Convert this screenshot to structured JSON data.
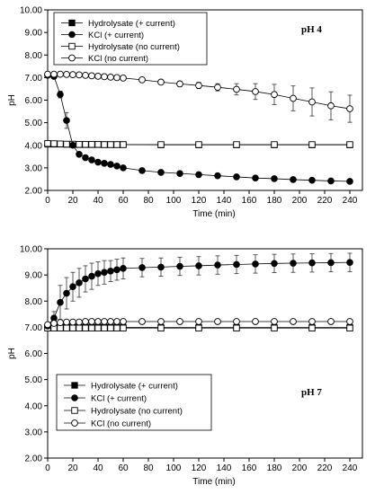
{
  "chart_data": [
    {
      "type": "scatter",
      "title": "pH 4",
      "xlabel": "Time (min)",
      "ylabel": "pH",
      "xlim": [
        0,
        250
      ],
      "ylim": [
        2.0,
        10.0
      ],
      "xticks": [
        0,
        20,
        40,
        60,
        80,
        100,
        120,
        140,
        160,
        180,
        200,
        220,
        240
      ],
      "yticks": [
        "2.00",
        "3.00",
        "4.00",
        "5.00",
        "6.00",
        "7.00",
        "8.00",
        "9.00",
        "10.00"
      ],
      "legend_position": "top-left",
      "series": [
        {
          "name": "Hydrolysate (+ current)",
          "marker": "square-filled",
          "x": [
            0,
            5,
            10,
            15,
            20,
            25,
            30,
            35,
            40,
            45,
            50,
            55,
            60,
            90,
            120,
            150,
            180,
            210,
            240
          ],
          "y": [
            4.05,
            4.05,
            4.05,
            4.04,
            4.04,
            4.03,
            4.03,
            4.03,
            4.03,
            4.03,
            4.03,
            4.03,
            4.03,
            4.02,
            4.02,
            4.02,
            4.02,
            4.02,
            4.02
          ]
        },
        {
          "name": "KCl (+ current)",
          "marker": "circle-filled",
          "x": [
            0,
            5,
            10,
            15,
            20,
            25,
            30,
            35,
            40,
            45,
            50,
            55,
            60,
            75,
            90,
            105,
            120,
            135,
            150,
            165,
            180,
            195,
            210,
            225,
            240
          ],
          "y": [
            7.1,
            7.05,
            6.25,
            5.1,
            4.0,
            3.6,
            3.45,
            3.35,
            3.25,
            3.2,
            3.15,
            3.08,
            3.0,
            2.88,
            2.8,
            2.75,
            2.7,
            2.65,
            2.6,
            2.55,
            2.52,
            2.48,
            2.45,
            2.42,
            2.4
          ],
          "err": [
            0,
            0,
            0.15,
            0.35,
            0.1,
            0.05,
            0.05,
            0.05,
            0.05,
            0.05,
            0.05,
            0.05,
            0.05,
            0.05,
            0.05,
            0.05,
            0.05,
            0.05,
            0.05,
            0.05,
            0.05,
            0.05,
            0.05,
            0.05,
            0.05
          ]
        },
        {
          "name": "Hydrolysate (no current)",
          "marker": "square-open",
          "x": [
            0,
            5,
            10,
            15,
            20,
            25,
            30,
            35,
            40,
            45,
            50,
            55,
            60,
            90,
            120,
            150,
            180,
            210,
            240
          ],
          "y": [
            4.08,
            4.07,
            4.06,
            4.05,
            4.05,
            4.04,
            4.04,
            4.04,
            4.04,
            4.03,
            4.03,
            4.03,
            4.03,
            4.03,
            4.03,
            4.03,
            4.03,
            4.03,
            4.03
          ]
        },
        {
          "name": "KCl (no current)",
          "marker": "circle-open",
          "x": [
            0,
            5,
            10,
            15,
            20,
            25,
            30,
            35,
            40,
            45,
            50,
            55,
            60,
            75,
            90,
            105,
            120,
            135,
            150,
            165,
            180,
            195,
            210,
            225,
            240
          ],
          "y": [
            7.15,
            7.15,
            7.15,
            7.14,
            7.13,
            7.12,
            7.1,
            7.08,
            7.06,
            7.04,
            7.02,
            7.0,
            6.98,
            6.9,
            6.8,
            6.72,
            6.65,
            6.57,
            6.48,
            6.38,
            6.25,
            6.08,
            5.92,
            5.75,
            5.62
          ],
          "err": [
            0.03,
            0.03,
            0.04,
            0.04,
            0.05,
            0.05,
            0.05,
            0.05,
            0.06,
            0.06,
            0.06,
            0.06,
            0.07,
            0.08,
            0.1,
            0.12,
            0.14,
            0.16,
            0.25,
            0.35,
            0.45,
            0.55,
            0.62,
            0.62,
            0.6
          ]
        }
      ]
    },
    {
      "type": "scatter",
      "title": "pH 7",
      "xlabel": "Time (min)",
      "ylabel": "pH",
      "xlim": [
        0,
        250
      ],
      "ylim": [
        2.0,
        10.0
      ],
      "xticks": [
        0,
        20,
        40,
        60,
        80,
        100,
        120,
        140,
        160,
        180,
        200,
        220,
        240
      ],
      "yticks": [
        "2.00",
        "3.00",
        "4.00",
        "5.00",
        "6.00",
        "7.00",
        "8.00",
        "9.00",
        "10.00"
      ],
      "legend_position": "bottom-left",
      "series": [
        {
          "name": "Hydrolysate (+ current)",
          "marker": "square-filled",
          "x": [
            0,
            5,
            10,
            15,
            20,
            25,
            30,
            35,
            40,
            45,
            50,
            55,
            60,
            90,
            120,
            150,
            180,
            210,
            240
          ],
          "y": [
            7.0,
            7.0,
            7.0,
            7.0,
            7.0,
            7.0,
            7.0,
            7.0,
            7.0,
            7.0,
            7.0,
            7.0,
            7.0,
            6.99,
            6.99,
            6.99,
            6.99,
            6.99,
            6.99
          ]
        },
        {
          "name": "KCl (+ current)",
          "marker": "circle-filled",
          "x": [
            0,
            5,
            10,
            15,
            20,
            25,
            30,
            35,
            40,
            45,
            50,
            55,
            60,
            75,
            90,
            105,
            120,
            135,
            150,
            165,
            180,
            195,
            210,
            225,
            240
          ],
          "y": [
            7.05,
            7.35,
            7.95,
            8.3,
            8.55,
            8.7,
            8.85,
            8.95,
            9.05,
            9.1,
            9.15,
            9.2,
            9.25,
            9.28,
            9.3,
            9.33,
            9.35,
            9.38,
            9.4,
            9.42,
            9.44,
            9.45,
            9.46,
            9.47,
            9.48
          ],
          "err": [
            0.05,
            0.25,
            0.65,
            0.6,
            0.55,
            0.55,
            0.5,
            0.5,
            0.45,
            0.45,
            0.4,
            0.4,
            0.4,
            0.35,
            0.35,
            0.35,
            0.35,
            0.35,
            0.35,
            0.35,
            0.35,
            0.35,
            0.35,
            0.35,
            0.35
          ]
        },
        {
          "name": "Hydrolysate (no current)",
          "marker": "square-open",
          "x": [
            0,
            5,
            10,
            15,
            20,
            25,
            30,
            35,
            40,
            45,
            50,
            55,
            60,
            90,
            120,
            150,
            180,
            210,
            240
          ],
          "y": [
            6.97,
            6.97,
            6.97,
            6.97,
            6.97,
            6.97,
            6.97,
            6.97,
            6.97,
            6.97,
            6.97,
            6.97,
            6.97,
            6.97,
            6.97,
            6.97,
            6.97,
            6.97,
            6.97
          ]
        },
        {
          "name": "KCl (no current)",
          "marker": "circle-open",
          "x": [
            0,
            5,
            10,
            15,
            20,
            25,
            30,
            35,
            40,
            45,
            50,
            55,
            60,
            75,
            90,
            105,
            120,
            135,
            150,
            165,
            180,
            195,
            210,
            225,
            240
          ],
          "y": [
            7.1,
            7.15,
            7.18,
            7.2,
            7.2,
            7.2,
            7.22,
            7.22,
            7.22,
            7.22,
            7.22,
            7.22,
            7.22,
            7.22,
            7.22,
            7.22,
            7.22,
            7.22,
            7.22,
            7.22,
            7.22,
            7.22,
            7.22,
            7.22,
            7.22
          ],
          "err": [
            0.05,
            0.05,
            0.05,
            0.05,
            0.05,
            0.05,
            0.05,
            0.05,
            0.05,
            0.05,
            0.05,
            0.05,
            0.05,
            0.05,
            0.05,
            0.05,
            0.05,
            0.05,
            0.05,
            0.05,
            0.05,
            0.05,
            0.05,
            0.05,
            0.05
          ]
        }
      ]
    }
  ]
}
